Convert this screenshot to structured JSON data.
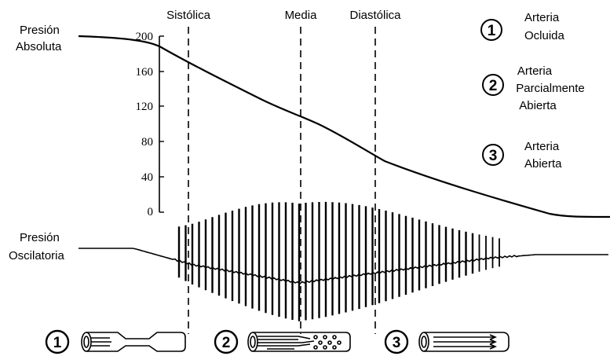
{
  "markers": {
    "sistolica": "Sistólica",
    "media": "Media",
    "diastolica": "Diastólica"
  },
  "labels": {
    "absolute_line1": "Presión",
    "absolute_line2": "Absoluta",
    "oscillatory_line1": "Presión",
    "oscillatory_line2": "Oscilatoria"
  },
  "axis": {
    "ticks": [
      "200",
      "160",
      "120",
      "80",
      "40",
      "0"
    ]
  },
  "legend": [
    {
      "number": "1",
      "lines": [
        "Arteria",
        "Ocluida"
      ]
    },
    {
      "number": "2",
      "lines": [
        "Arteria",
        "Parcialmente",
        "Abierta"
      ]
    },
    {
      "number": "3",
      "lines": [
        "Arteria",
        "Abierta"
      ]
    }
  ],
  "stages": [
    {
      "number": "1",
      "icon": "occluded-artery-icon"
    },
    {
      "number": "2",
      "icon": "partially-open-artery-icon"
    },
    {
      "number": "3",
      "icon": "open-artery-icon"
    }
  ]
}
